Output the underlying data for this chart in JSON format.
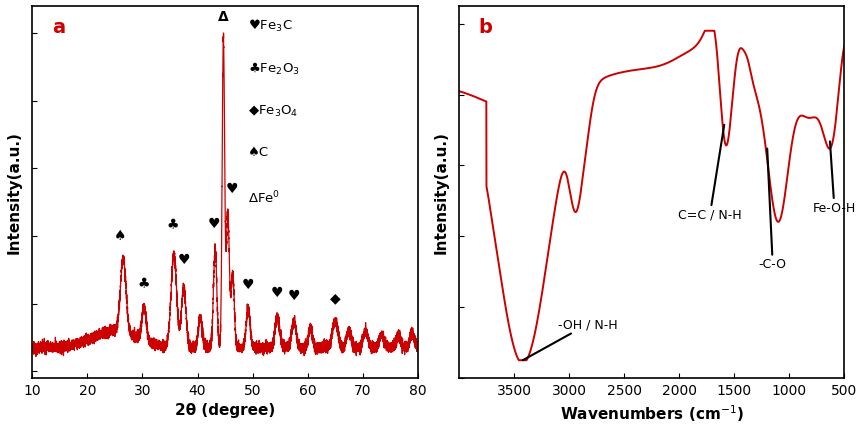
{
  "panel_a": {
    "label": "a",
    "xlabel": "2θ (degree)",
    "ylabel": "Intensity(a.u.)",
    "xlim": [
      10,
      80
    ],
    "xticks": [
      10,
      20,
      30,
      40,
      50,
      60,
      70,
      80
    ],
    "legend": [
      {
        "symbol": "♥",
        "text": "Fe$_3$C"
      },
      {
        "symbol": "♣",
        "text": "Fe$_2$O$_3$"
      },
      {
        "symbol": "◆",
        "text": "Fe$_3$O$_4$"
      },
      {
        "symbol": "♠",
        "text": "C"
      },
      {
        "symbol": "Δ",
        "text": "Fe$^0$"
      }
    ],
    "annotations": [
      {
        "symbol": "♠",
        "x": 26.0,
        "yoff": 0.04
      },
      {
        "symbol": "♣",
        "x": 30.3,
        "yoff": 0.04
      },
      {
        "symbol": "♣",
        "x": 35.5,
        "yoff": 0.06
      },
      {
        "symbol": "♥",
        "x": 37.5,
        "yoff": 0.05
      },
      {
        "symbol": "♥",
        "x": 43.0,
        "yoff": 0.04
      },
      {
        "symbol": "Δ",
        "x": 44.7,
        "yoff": 0.03
      },
      {
        "symbol": "♥",
        "x": 46.2,
        "yoff": 0.04
      },
      {
        "symbol": "♥",
        "x": 49.2,
        "yoff": 0.04
      },
      {
        "symbol": "♥",
        "x": 54.5,
        "yoff": 0.04
      },
      {
        "symbol": "♥",
        "x": 57.5,
        "yoff": 0.04
      },
      {
        "symbol": "◆",
        "x": 65.0,
        "yoff": 0.04
      }
    ],
    "line_color": "#cc0000",
    "line_width": 0.9
  },
  "panel_b": {
    "label": "b",
    "xlabel": "Wavenumbers (cm$^{-1}$)",
    "ylabel": "Intensity(a.u.)",
    "xlim": [
      4000,
      500
    ],
    "xticks": [
      3500,
      3000,
      2500,
      2000,
      1500,
      1000,
      500
    ],
    "line_color": "#cc0000",
    "line_width": 1.4
  },
  "background_color": "#ffffff",
  "label_color": "#cc0000",
  "label_fontsize": 14
}
